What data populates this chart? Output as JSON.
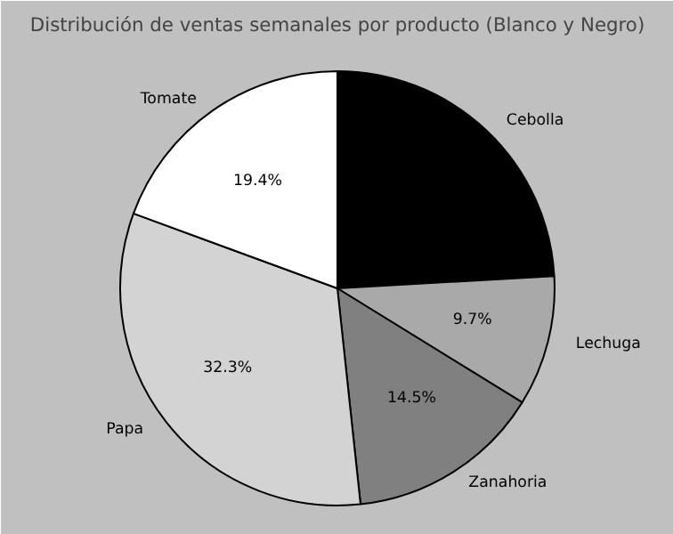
{
  "chart_data": {
    "type": "pie",
    "title": "Distribución de ventas semanales por producto (Blanco y Negro)",
    "categories": [
      "Cebolla",
      "Lechuga",
      "Zanahoria",
      "Papa",
      "Tomate"
    ],
    "values": [
      24.1,
      9.7,
      14.5,
      32.3,
      19.4
    ],
    "colors": [
      "#000000",
      "#a9a9a9",
      "#808080",
      "#d3d3d3",
      "#ffffff"
    ],
    "value_labels": [
      null,
      "9.7%",
      "14.5%",
      "32.3%",
      "19.4%"
    ]
  }
}
